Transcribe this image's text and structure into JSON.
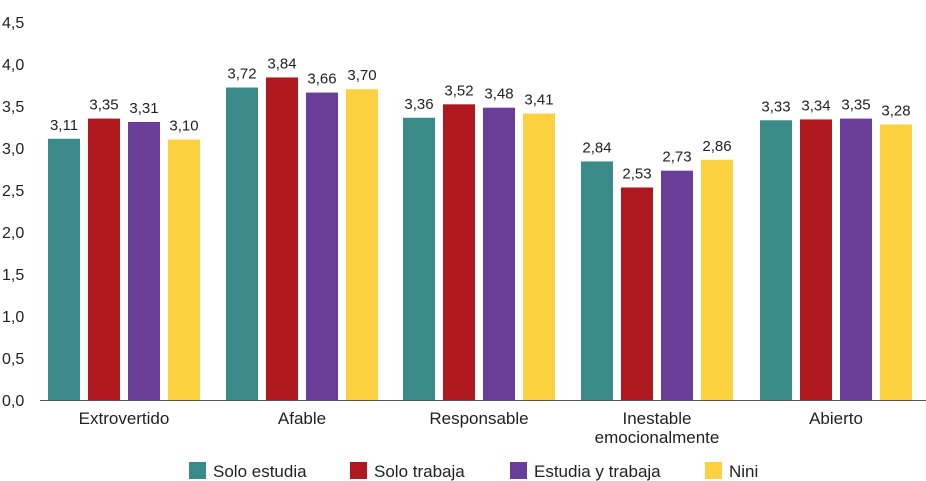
{
  "chart_data": {
    "type": "bar",
    "title": "",
    "xlabel": "",
    "ylabel": "",
    "ylim": [
      0,
      4.5
    ],
    "yticks": [
      "0,0",
      "0,5",
      "1,0",
      "1,5",
      "2,0",
      "2,5",
      "3,0",
      "3,5",
      "4,0",
      "4,5"
    ],
    "ytick_values": [
      0,
      0.5,
      1,
      1.5,
      2,
      2.5,
      3,
      3.5,
      4,
      4.5
    ],
    "grid": false,
    "legend_position": "bottom",
    "categories": [
      [
        "Extrovertido"
      ],
      [
        "Afable"
      ],
      [
        "Responsable"
      ],
      [
        "Inestable",
        "emocionalmente"
      ],
      [
        "Abierto"
      ]
    ],
    "series": [
      {
        "name": "Solo estudia",
        "color": "#3a8a8a",
        "values": [
          3.11,
          3.72,
          3.36,
          2.84,
          3.33
        ],
        "labels": [
          "3,11",
          "3,72",
          "3,36",
          "2,84",
          "3,33"
        ]
      },
      {
        "name": "Solo trabaja",
        "color": "#b0181f",
        "values": [
          3.35,
          3.84,
          3.52,
          2.53,
          3.34
        ],
        "labels": [
          "3,35",
          "3,84",
          "3,52",
          "2,53",
          "3,34"
        ]
      },
      {
        "name": "Estudia y trabaja",
        "color": "#6a3d98",
        "values": [
          3.31,
          3.66,
          3.48,
          2.73,
          3.35
        ],
        "labels": [
          "3,31",
          "3,66",
          "3,48",
          "2,73",
          "3,35"
        ]
      },
      {
        "name": "Nini",
        "color": "#fcd13f",
        "values": [
          3.1,
          3.7,
          3.41,
          2.86,
          3.28
        ],
        "labels": [
          "3,10",
          "3,70",
          "3,41",
          "2,86",
          "3,28"
        ]
      }
    ]
  }
}
